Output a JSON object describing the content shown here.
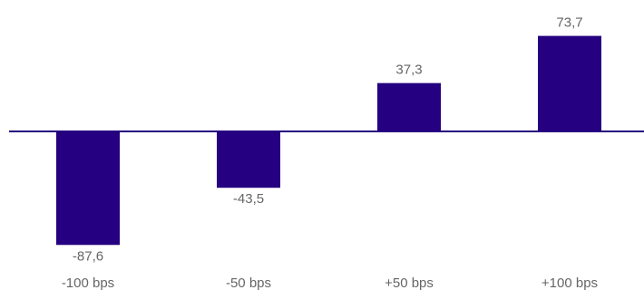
{
  "chart_data": {
    "type": "bar",
    "categories": [
      "-100 bps",
      "-50 bps",
      "+50 bps",
      "+100 bps"
    ],
    "values": [
      -87.6,
      -43.5,
      37.3,
      73.7
    ],
    "value_labels": [
      "-87,6",
      "-43,5",
      "37,3",
      "73,7"
    ],
    "title": "",
    "xlabel": "",
    "ylabel": "",
    "ylim": [
      -100,
      80
    ],
    "grid": false,
    "legend": "none",
    "colors": {
      "bar": "#250080",
      "baseline": "#250080",
      "label": "#666666"
    }
  }
}
